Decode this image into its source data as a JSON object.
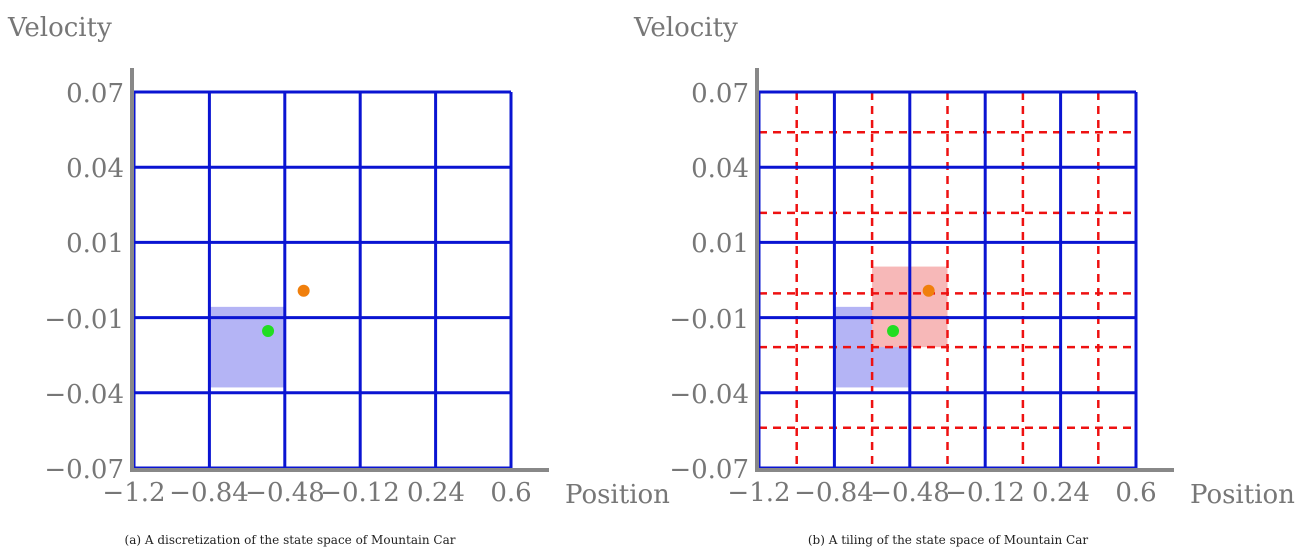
{
  "chart_data": [
    {
      "type": "grid",
      "caption": "(a) A discretization of the state space of Mountain Car",
      "xlabel": "Position",
      "ylabel": "Velocity",
      "xticks": [
        "−1.2",
        "−0.84",
        "−0.48",
        "−0.12",
        "0.24",
        "0.6"
      ],
      "yticks": [
        "0.07",
        "0.04",
        "0.01",
        "−0.01",
        "−0.04",
        "−0.07"
      ],
      "xlim": [
        -1.2,
        0.6
      ],
      "ylim": [
        -0.07,
        0.07
      ],
      "grid_lines": {
        "color": "#0a14d2",
        "style": "solid"
      },
      "highlighted_cells": [
        {
          "x_range": [
            -0.84,
            -0.48
          ],
          "y_range": [
            -0.04,
            -0.01
          ],
          "color": "#b4b4f5"
        }
      ],
      "points": [
        {
          "x": -0.56,
          "y": -0.019,
          "color": "#22dd22"
        },
        {
          "x": -0.39,
          "y": -0.004,
          "color": "#f07f0c"
        }
      ]
    },
    {
      "type": "grid",
      "caption": "(b) A tiling of the state space of Mountain Car",
      "xlabel": "Position",
      "ylabel": "Velocity",
      "xticks": [
        "−1.2",
        "−0.84",
        "−0.48",
        "−0.12",
        "0.24",
        "0.6"
      ],
      "yticks": [
        "0.07",
        "0.04",
        "0.01",
        "−0.01",
        "−0.04",
        "−0.07"
      ],
      "xlim": [
        -1.2,
        0.6
      ],
      "ylim": [
        -0.07,
        0.07
      ],
      "grid_lines": {
        "color": "#0a14d2",
        "style": "solid"
      },
      "offset_tiling": {
        "color": "#ee1111",
        "style": "dashed",
        "x_lines": [
          -1.02,
          -0.66,
          -0.3,
          0.06,
          0.42
        ],
        "y_lines": [
          0.055,
          0.025,
          -0.005,
          -0.025,
          -0.055
        ]
      },
      "highlighted_cells": [
        {
          "x_range": [
            -0.84,
            -0.48
          ],
          "y_range": [
            -0.04,
            -0.01
          ],
          "color": "#b4b4f5"
        },
        {
          "x_range": [
            -0.66,
            -0.3
          ],
          "y_range": [
            -0.025,
            0.005
          ],
          "color": "#f7b8b8"
        }
      ],
      "points": [
        {
          "x": -0.56,
          "y": -0.019,
          "color": "#22dd22"
        },
        {
          "x": -0.39,
          "y": -0.004,
          "color": "#f07f0c"
        }
      ]
    }
  ]
}
